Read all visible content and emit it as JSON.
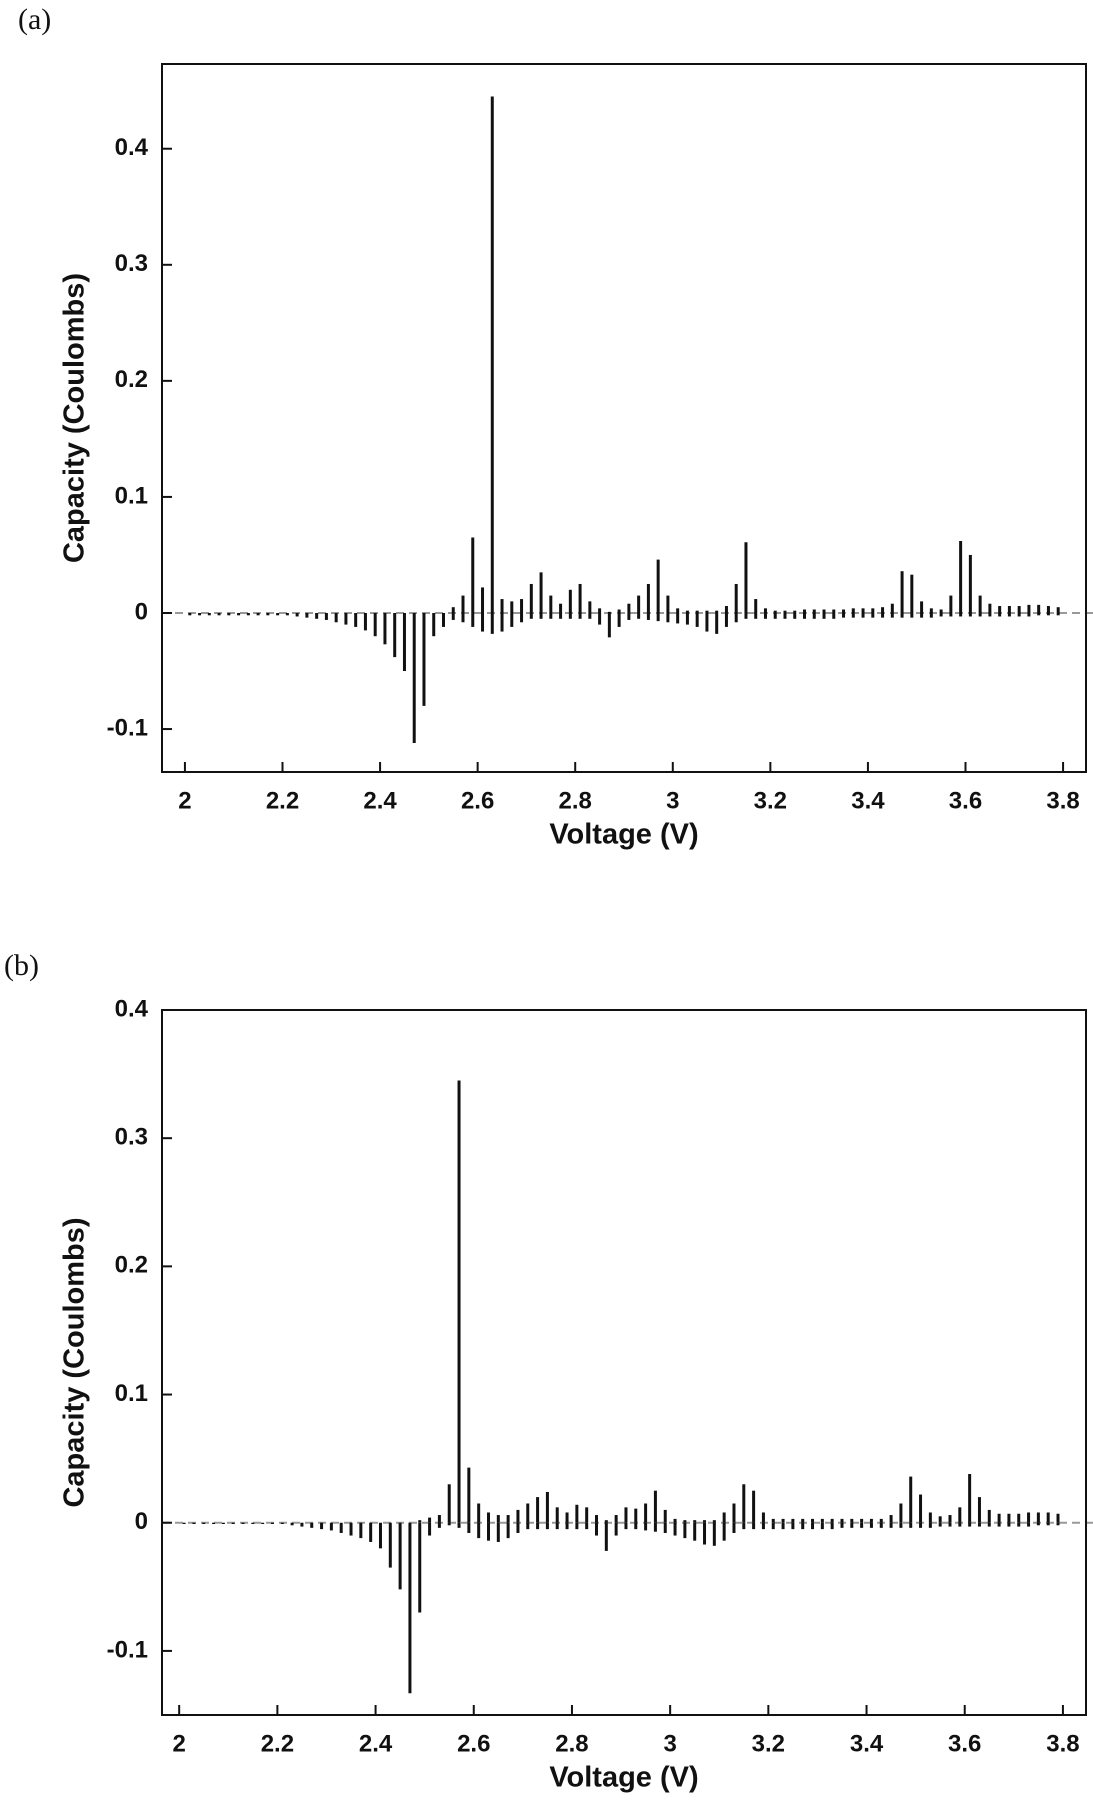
{
  "chart_data": [
    {
      "type": "stem",
      "panel_label": "(a)",
      "xlabel": "Voltage (V)",
      "ylabel": "Capacity (Coulombs)",
      "xlim": [
        1.953,
        3.847
      ],
      "ylim": [
        -0.137,
        0.473
      ],
      "xticks": [
        2,
        2.2,
        2.4,
        2.6,
        2.8,
        3,
        3.2,
        3.4,
        3.6,
        3.8
      ],
      "yticks": [
        -0.1,
        0,
        0.1,
        0.2,
        0.3,
        0.4
      ],
      "x": [
        2.01,
        2.03,
        2.05,
        2.07,
        2.09,
        2.11,
        2.13,
        2.15,
        2.17,
        2.19,
        2.21,
        2.23,
        2.25,
        2.27,
        2.29,
        2.31,
        2.33,
        2.35,
        2.37,
        2.39,
        2.41,
        2.43,
        2.45,
        2.47,
        2.49,
        2.51,
        2.53,
        2.55,
        2.57,
        2.59,
        2.61,
        2.63,
        2.65,
        2.67,
        2.69,
        2.71,
        2.73,
        2.75,
        2.77,
        2.79,
        2.81,
        2.83,
        2.85,
        2.87,
        2.89,
        2.91,
        2.93,
        2.95,
        2.97,
        2.99,
        3.01,
        3.03,
        3.05,
        3.07,
        3.09,
        3.11,
        3.13,
        3.15,
        3.17,
        3.19,
        3.21,
        3.23,
        3.25,
        3.27,
        3.29,
        3.31,
        3.33,
        3.35,
        3.37,
        3.39,
        3.41,
        3.43,
        3.45,
        3.47,
        3.49,
        3.51,
        3.53,
        3.55,
        3.57,
        3.59,
        3.61,
        3.63,
        3.65,
        3.67,
        3.69,
        3.71,
        3.73,
        3.75,
        3.77,
        3.79
      ],
      "series": [
        {
          "color": "#111111",
          "values": [
            0,
            0,
            0,
            0,
            0,
            0,
            0,
            0,
            0,
            0,
            0,
            0,
            0,
            0,
            0,
            0,
            0,
            0,
            0,
            0,
            0,
            0,
            0,
            0,
            0,
            0,
            0,
            0.005,
            0.015,
            0.065,
            0.022,
            0.445,
            0.012,
            0.01,
            0.012,
            0.025,
            0.035,
            0.015,
            0.008,
            0.02,
            0.025,
            0.01,
            0.004,
            0.001,
            0.003,
            0.008,
            0.015,
            0.025,
            0.046,
            0.015,
            0.004,
            0.002,
            0.002,
            0.002,
            0.002,
            0.006,
            0.025,
            0.061,
            0.012,
            0.004,
            0.002,
            0.002,
            0.002,
            0.003,
            0.003,
            0.003,
            0.003,
            0.003,
            0.004,
            0.004,
            0.004,
            0.005,
            0.008,
            0.036,
            0.033,
            0.01,
            0.004,
            0.003,
            0.015,
            0.062,
            0.05,
            0.015,
            0.008,
            0.006,
            0.006,
            0.006,
            0.007,
            0.007,
            0.006,
            0.005
          ]
        },
        {
          "color": "#111111",
          "values": [
            -0.002,
            -0.002,
            -0.002,
            -0.002,
            -0.002,
            -0.002,
            -0.002,
            -0.002,
            -0.002,
            -0.002,
            -0.002,
            -0.003,
            -0.004,
            -0.005,
            -0.006,
            -0.008,
            -0.01,
            -0.012,
            -0.015,
            -0.02,
            -0.027,
            -0.038,
            -0.05,
            -0.112,
            -0.08,
            -0.02,
            -0.012,
            -0.006,
            -0.008,
            -0.012,
            -0.016,
            -0.018,
            -0.016,
            -0.012,
            -0.008,
            -0.005,
            -0.005,
            -0.005,
            -0.005,
            -0.005,
            -0.005,
            -0.005,
            -0.01,
            -0.021,
            -0.012,
            -0.006,
            -0.005,
            -0.006,
            -0.007,
            -0.008,
            -0.009,
            -0.01,
            -0.012,
            -0.016,
            -0.018,
            -0.012,
            -0.008,
            -0.005,
            -0.005,
            -0.005,
            -0.005,
            -0.005,
            -0.005,
            -0.005,
            -0.005,
            -0.005,
            -0.005,
            -0.004,
            -0.004,
            -0.004,
            -0.004,
            -0.004,
            -0.004,
            -0.004,
            -0.004,
            -0.004,
            -0.004,
            -0.003,
            -0.003,
            -0.003,
            -0.003,
            -0.003,
            -0.003,
            -0.003,
            -0.003,
            -0.003,
            -0.003,
            -0.002,
            -0.002,
            -0.002
          ]
        }
      ]
    },
    {
      "type": "stem",
      "panel_label": "(b)",
      "xlabel": "Voltage (V)",
      "ylabel": "Capacity (Coulombs)",
      "xlim": [
        1.965,
        3.847
      ],
      "ylim": [
        -0.15,
        0.4
      ],
      "xticks": [
        2,
        2.2,
        2.4,
        2.6,
        2.8,
        3,
        3.2,
        3.4,
        3.6,
        3.8
      ],
      "yticks": [
        -0.1,
        0,
        0.1,
        0.2,
        0.3,
        0.4
      ],
      "x": [
        2.01,
        2.03,
        2.05,
        2.07,
        2.09,
        2.11,
        2.13,
        2.15,
        2.17,
        2.19,
        2.21,
        2.23,
        2.25,
        2.27,
        2.29,
        2.31,
        2.33,
        2.35,
        2.37,
        2.39,
        2.41,
        2.43,
        2.45,
        2.47,
        2.49,
        2.51,
        2.53,
        2.55,
        2.57,
        2.59,
        2.61,
        2.63,
        2.65,
        2.67,
        2.69,
        2.71,
        2.73,
        2.75,
        2.77,
        2.79,
        2.81,
        2.83,
        2.85,
        2.87,
        2.89,
        2.91,
        2.93,
        2.95,
        2.97,
        2.99,
        3.01,
        3.03,
        3.05,
        3.07,
        3.09,
        3.11,
        3.13,
        3.15,
        3.17,
        3.19,
        3.21,
        3.23,
        3.25,
        3.27,
        3.29,
        3.31,
        3.33,
        3.35,
        3.37,
        3.39,
        3.41,
        3.43,
        3.45,
        3.47,
        3.49,
        3.51,
        3.53,
        3.55,
        3.57,
        3.59,
        3.61,
        3.63,
        3.65,
        3.67,
        3.69,
        3.71,
        3.73,
        3.75,
        3.77,
        3.79
      ],
      "series": [
        {
          "color": "#111111",
          "values": [
            0,
            0,
            0,
            0,
            0,
            0,
            0,
            0,
            0,
            0,
            0,
            0,
            0,
            0,
            0,
            0,
            0,
            0,
            0,
            0,
            0,
            0,
            0,
            0,
            0.002,
            0.004,
            0.006,
            0.03,
            0.345,
            0.043,
            0.015,
            0.008,
            0.006,
            0.006,
            0.01,
            0.015,
            0.02,
            0.024,
            0.012,
            0.008,
            0.014,
            0.012,
            0.006,
            0.002,
            0.006,
            0.012,
            0.011,
            0.015,
            0.025,
            0.01,
            0.003,
            0.002,
            0.002,
            0.002,
            0.002,
            0.008,
            0.015,
            0.03,
            0.025,
            0.008,
            0.003,
            0.003,
            0.003,
            0.003,
            0.003,
            0.003,
            0.003,
            0.003,
            0.003,
            0.003,
            0.003,
            0.003,
            0.006,
            0.015,
            0.036,
            0.022,
            0.008,
            0.005,
            0.006,
            0.012,
            0.038,
            0.02,
            0.01,
            0.007,
            0.007,
            0.007,
            0.008,
            0.008,
            0.008,
            0.007
          ]
        },
        {
          "color": "#111111",
          "values": [
            -0.001,
            -0.001,
            -0.001,
            -0.001,
            -0.001,
            -0.001,
            -0.001,
            -0.001,
            -0.001,
            -0.001,
            -0.001,
            -0.002,
            -0.003,
            -0.004,
            -0.005,
            -0.006,
            -0.008,
            -0.01,
            -0.012,
            -0.015,
            -0.02,
            -0.035,
            -0.052,
            -0.133,
            -0.07,
            -0.01,
            -0.004,
            -0.002,
            -0.004,
            -0.008,
            -0.012,
            -0.014,
            -0.015,
            -0.012,
            -0.008,
            -0.005,
            -0.005,
            -0.005,
            -0.005,
            -0.005,
            -0.005,
            -0.005,
            -0.01,
            -0.022,
            -0.01,
            -0.005,
            -0.005,
            -0.006,
            -0.007,
            -0.008,
            -0.01,
            -0.012,
            -0.014,
            -0.017,
            -0.018,
            -0.014,
            -0.008,
            -0.005,
            -0.005,
            -0.005,
            -0.005,
            -0.005,
            -0.005,
            -0.005,
            -0.005,
            -0.005,
            -0.005,
            -0.004,
            -0.004,
            -0.004,
            -0.004,
            -0.004,
            -0.004,
            -0.004,
            -0.004,
            -0.004,
            -0.004,
            -0.003,
            -0.003,
            -0.003,
            -0.003,
            -0.003,
            -0.003,
            -0.003,
            -0.003,
            -0.003,
            -0.003,
            -0.002,
            -0.002,
            -0.002
          ]
        }
      ]
    }
  ]
}
